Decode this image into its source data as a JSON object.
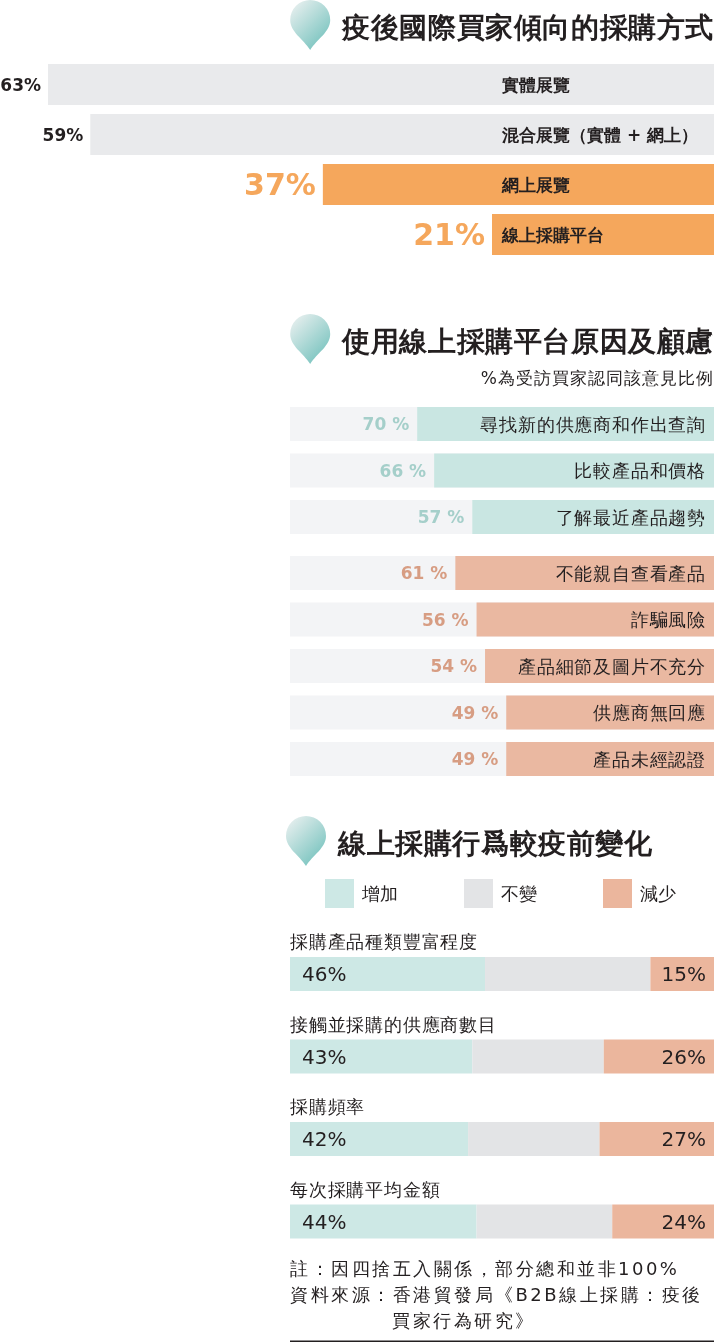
{
  "chart_data": [
    {
      "type": "bar",
      "orientation": "horizontal",
      "title": "疫後國際買家傾向的採購方式",
      "categories": [
        "實體展覽",
        "混合展覽（實體 + 網上）",
        "網上展覽",
        "線上採購平台"
      ],
      "values": [
        63,
        59,
        37,
        21
      ],
      "colors": [
        "#e9eaec",
        "#e9eaec",
        "#f5a75c",
        "#f5a75c"
      ],
      "value_labels": [
        "63%",
        "59%",
        "37%",
        "21%"
      ],
      "tick_labels": "y"
    },
    {
      "type": "bar",
      "orientation": "horizontal",
      "title": "使用線上採購平台原因及顧慮",
      "subtitle": "%為受訪買家認同該意見比例",
      "categories": [
        "尋找新的供應商和作出查詢",
        "比較產品和價格",
        "了解最近產品趨勢",
        "不能親自查看產品",
        "詐騙風險",
        "產品細節及圖片不充分",
        "供應商無回應",
        "產品未經認證"
      ],
      "values": [
        70,
        66,
        57,
        61,
        56,
        54,
        49,
        49
      ],
      "colors": [
        "#c9e6e2",
        "#c9e6e2",
        "#c9e6e2",
        "#eab8a1",
        "#eab8a1",
        "#eab8a1",
        "#eab8a1",
        "#eab8a1"
      ],
      "value_labels": [
        "70 %",
        "66 %",
        "57 %",
        "61 %",
        "56 %",
        "54 %",
        "49 %",
        "49 %"
      ],
      "xlim": [
        100,
        0
      ],
      "tick_labels": "y"
    },
    {
      "type": "bar",
      "orientation": "horizontal",
      "stacked": true,
      "title": "線上採購行爲較疫前變化",
      "categories": [
        "採購產品種類豐富程度",
        "接觸並採購的供應商數目",
        "採購頻率",
        "每次採購平均金額"
      ],
      "series": [
        {
          "name": "增加",
          "color": "#cde8e5",
          "values": [
            46,
            43,
            42,
            44
          ],
          "value_labels": [
            "46%",
            "43%",
            "42%",
            "44%"
          ]
        },
        {
          "name": "不變",
          "color": "#e3e4e6",
          "values": [
            39,
            31,
            31,
            32
          ]
        },
        {
          "name": "減少",
          "color": "#ebb69d",
          "values": [
            15,
            26,
            27,
            24
          ],
          "value_labels": [
            "15%",
            "26%",
            "27%",
            "24%"
          ]
        }
      ],
      "xlim": [
        0,
        100
      ],
      "legend": "top",
      "tick_labels": "y",
      "annotations": [
        "註：因四捨五入關係，部分總和並非100%",
        "資料來源：香港貿發局《B2B線上採購：疫後買家行為研究》"
      ]
    }
  ]
}
